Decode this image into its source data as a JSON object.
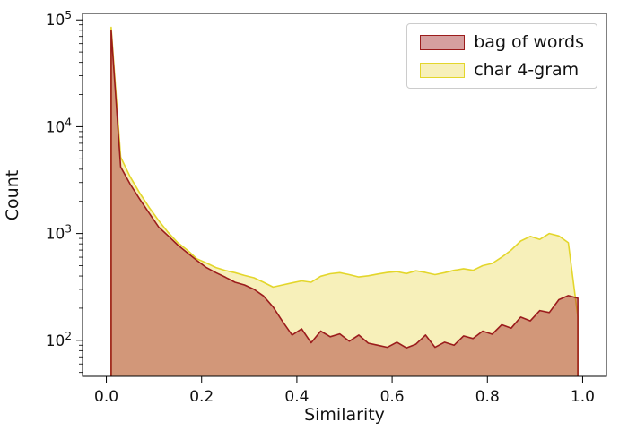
{
  "figure": {
    "background": "#ffffff"
  },
  "chart_data": {
    "type": "area",
    "title": "",
    "xlabel": "Similarity",
    "ylabel": "Count",
    "y_scale": "log",
    "grid": false,
    "legend_position": "upper right",
    "xlim": [
      -0.05,
      1.05
    ],
    "ylim": [
      46,
      115000
    ],
    "x_ticks": {
      "values": [
        0.0,
        0.2,
        0.4,
        0.6,
        0.8,
        1.0
      ],
      "labels": [
        "0.0",
        "0.2",
        "0.4",
        "0.6",
        "0.8",
        "1.0"
      ]
    },
    "y_ticks": {
      "values": [
        100,
        1000,
        10000,
        100000
      ],
      "label_base": "10",
      "label_exponents": [
        "2",
        "3",
        "4",
        "5"
      ]
    },
    "x": [
      0.01,
      0.03,
      0.05,
      0.07,
      0.09,
      0.11,
      0.13,
      0.15,
      0.17,
      0.19,
      0.21,
      0.23,
      0.25,
      0.27,
      0.29,
      0.31,
      0.33,
      0.35,
      0.37,
      0.39,
      0.41,
      0.43,
      0.45,
      0.47,
      0.49,
      0.51,
      0.53,
      0.55,
      0.57,
      0.59,
      0.61,
      0.63,
      0.65,
      0.67,
      0.69,
      0.71,
      0.73,
      0.75,
      0.77,
      0.79,
      0.81,
      0.83,
      0.85,
      0.87,
      0.89,
      0.91,
      0.93,
      0.95,
      0.97,
      0.99
    ],
    "series": [
      {
        "name": "bag of words",
        "edge_color": "#9b1c1c",
        "fill_color": "rgba(165,42,42,0.45)",
        "values": [
          80000,
          4200,
          2900,
          2100,
          1550,
          1150,
          950,
          780,
          660,
          560,
          480,
          430,
          390,
          350,
          330,
          300,
          260,
          205,
          150,
          112,
          128,
          95,
          122,
          108,
          115,
          98,
          112,
          94,
          90,
          86,
          96,
          85,
          92,
          112,
          86,
          96,
          90,
          110,
          104,
          122,
          114,
          140,
          130,
          165,
          152,
          190,
          182,
          240,
          262,
          248
        ]
      },
      {
        "name": "char 4-gram",
        "edge_color": "#e3d62b",
        "fill_color": "rgba(240,228,130,0.55)",
        "values": [
          85000,
          5200,
          3400,
          2400,
          1750,
          1320,
          1020,
          820,
          700,
          580,
          530,
          480,
          450,
          430,
          405,
          385,
          350,
          315,
          330,
          345,
          360,
          350,
          398,
          420,
          430,
          412,
          392,
          402,
          418,
          432,
          440,
          422,
          448,
          432,
          412,
          430,
          452,
          468,
          452,
          500,
          525,
          600,
          700,
          850,
          940,
          880,
          1000,
          950,
          820,
          165
        ]
      }
    ]
  }
}
